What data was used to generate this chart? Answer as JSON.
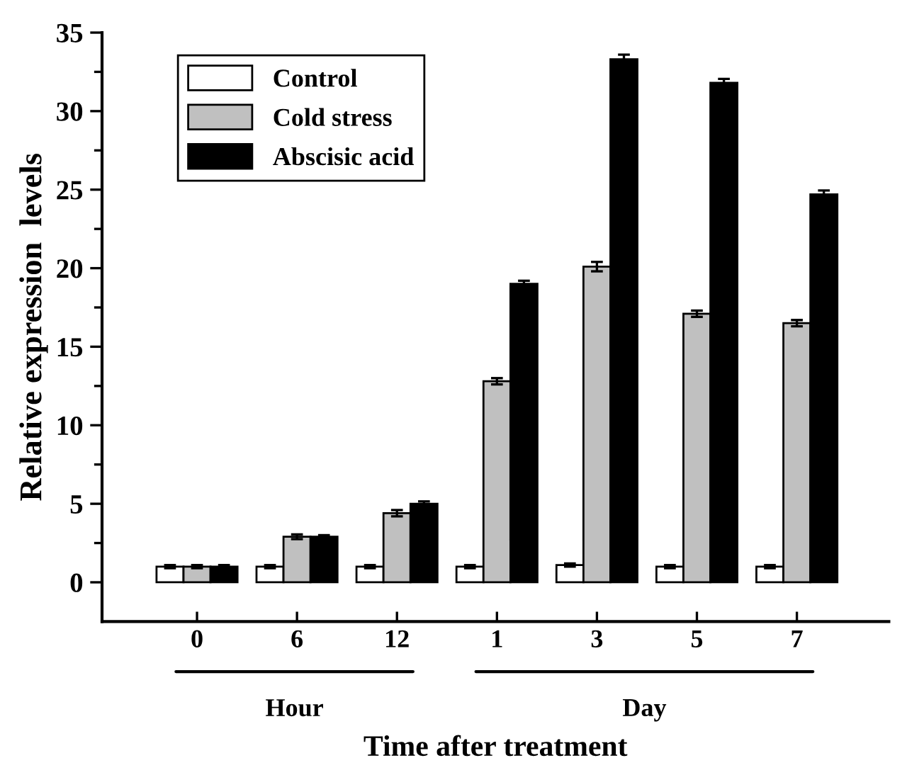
{
  "chart_data": {
    "type": "bar",
    "xlabel": "Time after treatment",
    "ylabel": "Relative expression  levels",
    "categories": [
      "0",
      "6",
      "12",
      "1",
      "3",
      "5",
      "7"
    ],
    "series": [
      {
        "name": "Control",
        "color": "#ffffff",
        "values": [
          1.0,
          1.0,
          1.0,
          1.0,
          1.1,
          1.0,
          1.0
        ],
        "errors": [
          0.1,
          0.1,
          0.1,
          0.1,
          0.1,
          0.1,
          0.1
        ]
      },
      {
        "name": "Cold stress",
        "color": "#c0c0c0",
        "values": [
          1.0,
          2.9,
          4.4,
          12.8,
          20.1,
          17.1,
          16.5
        ],
        "errors": [
          0.1,
          0.15,
          0.2,
          0.2,
          0.3,
          0.2,
          0.2
        ]
      },
      {
        "name": "Abscisic acid",
        "color": "#000000",
        "values": [
          1.0,
          2.9,
          5.0,
          19.0,
          33.3,
          31.8,
          24.7
        ],
        "errors": [
          0.1,
          0.1,
          0.15,
          0.2,
          0.3,
          0.25,
          0.25
        ]
      }
    ],
    "ylim": [
      -2.5,
      35
    ],
    "yticks": [
      0,
      {
        "value": 2.5,
        "label": null
      },
      5,
      {
        "value": 7.5,
        "label": null
      },
      10,
      {
        "value": 12.5,
        "label": null
      },
      15,
      {
        "value": 17.5,
        "label": null
      },
      20,
      {
        "value": 22.5,
        "label": null
      },
      25,
      {
        "value": 27.5,
        "label": null
      },
      30,
      {
        "value": 32.5,
        "label": null
      },
      35
    ],
    "annotations": [
      "Hour",
      "Day"
    ],
    "legend": "top left",
    "grid": false
  }
}
